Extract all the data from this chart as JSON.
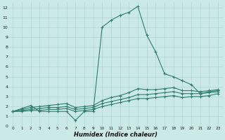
{
  "background_color": "#cce9e9",
  "grid_color": "#aed4d4",
  "line_color": "#2e7d6e",
  "x_label": "Humidex (Indice chaleur)",
  "x_ticks": [
    0,
    1,
    2,
    3,
    4,
    5,
    6,
    7,
    8,
    9,
    10,
    11,
    12,
    13,
    14,
    15,
    16,
    17,
    18,
    19,
    20,
    21,
    22,
    23
  ],
  "ylim": [
    0,
    12.5
  ],
  "xlim": [
    -0.5,
    23.5
  ],
  "yticks": [
    0,
    1,
    2,
    3,
    4,
    5,
    6,
    7,
    8,
    9,
    10,
    11,
    12
  ],
  "series1_x": [
    0,
    1,
    2,
    3,
    4,
    5,
    6,
    7,
    8,
    9,
    10,
    11,
    12,
    13,
    14,
    15,
    16,
    17,
    18,
    19,
    20,
    21,
    22,
    23
  ],
  "series1_y": [
    1.5,
    1.8,
    2.1,
    1.5,
    1.5,
    1.5,
    1.5,
    0.6,
    1.5,
    1.5,
    10.0,
    10.7,
    11.2,
    11.5,
    12.1,
    9.2,
    7.5,
    5.3,
    5.0,
    4.6,
    4.2,
    3.3,
    3.5,
    3.6
  ],
  "series2_x": [
    0,
    1,
    2,
    3,
    4,
    5,
    6,
    7,
    8,
    9,
    10,
    11,
    12,
    13,
    14,
    15,
    16,
    17,
    18,
    19,
    20,
    21,
    22,
    23
  ],
  "series2_y": [
    1.5,
    1.7,
    1.9,
    2.0,
    2.1,
    2.2,
    2.3,
    1.9,
    2.0,
    2.1,
    2.6,
    2.9,
    3.1,
    3.4,
    3.8,
    3.7,
    3.7,
    3.8,
    3.9,
    3.6,
    3.6,
    3.5,
    3.6,
    3.7
  ],
  "series3_x": [
    0,
    1,
    2,
    3,
    4,
    5,
    6,
    7,
    8,
    9,
    10,
    11,
    12,
    13,
    14,
    15,
    16,
    17,
    18,
    19,
    20,
    21,
    22,
    23
  ],
  "series3_y": [
    1.5,
    1.6,
    1.7,
    1.8,
    1.9,
    1.9,
    2.0,
    1.7,
    1.8,
    1.9,
    2.3,
    2.5,
    2.7,
    2.9,
    3.2,
    3.2,
    3.3,
    3.4,
    3.5,
    3.3,
    3.3,
    3.3,
    3.4,
    3.5
  ],
  "series4_x": [
    0,
    1,
    2,
    3,
    4,
    5,
    6,
    7,
    8,
    9,
    10,
    11,
    12,
    13,
    14,
    15,
    16,
    17,
    18,
    19,
    20,
    21,
    22,
    23
  ],
  "series4_y": [
    1.5,
    1.5,
    1.6,
    1.6,
    1.7,
    1.7,
    1.8,
    1.5,
    1.6,
    1.7,
    2.0,
    2.2,
    2.4,
    2.6,
    2.8,
    2.8,
    2.9,
    3.0,
    3.1,
    2.9,
    3.0,
    3.0,
    3.1,
    3.3
  ]
}
